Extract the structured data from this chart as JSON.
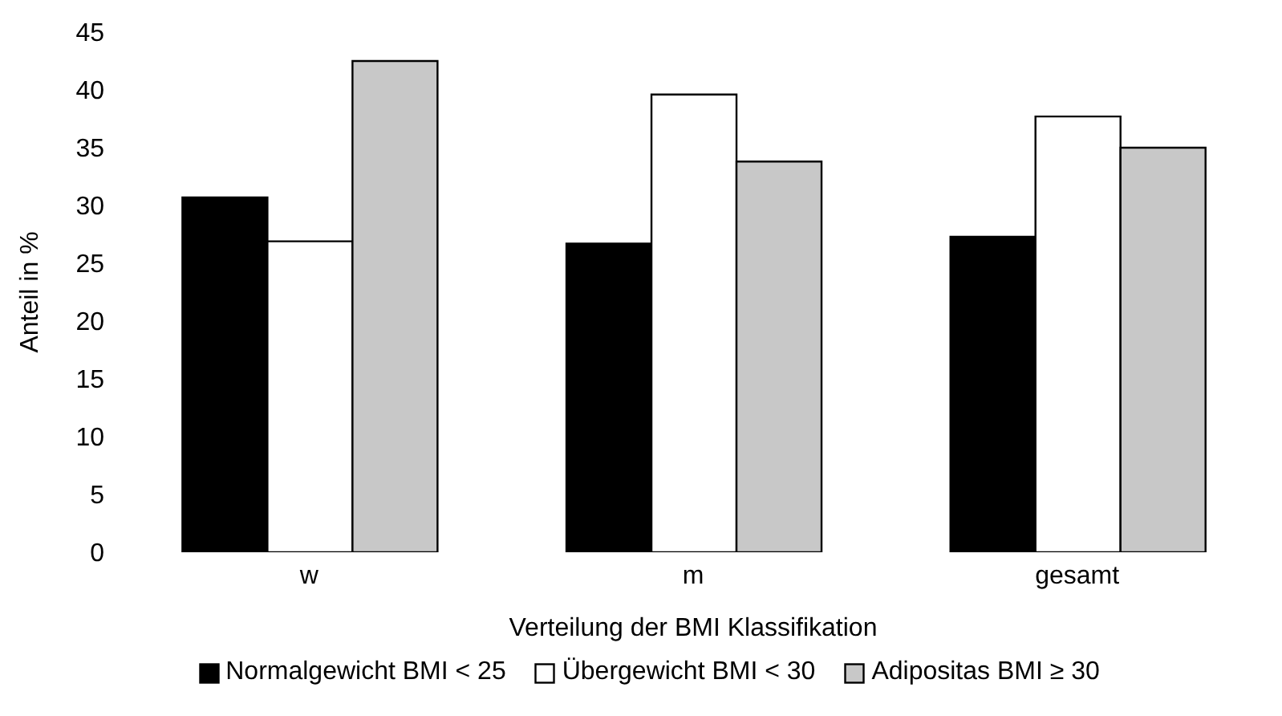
{
  "chart_data": {
    "type": "bar",
    "xlabel": "Verteilung der BMI Klassifikation",
    "ylabel": "Anteil in %",
    "categories": [
      "w",
      "m",
      "gesamt"
    ],
    "series": [
      {
        "name": "Normalgewicht BMI < 25",
        "color": "#000000",
        "values": [
          30.7,
          26.7,
          27.3
        ]
      },
      {
        "name": "Übergewicht BMI < 30",
        "color": "#ffffff",
        "values": [
          26.9,
          39.6,
          37.7
        ]
      },
      {
        "name": "Adipositas BMI ≥ 30",
        "color": "#c8c8c8",
        "values": [
          42.5,
          33.8,
          35.0
        ]
      }
    ],
    "ylim": [
      0,
      45
    ],
    "yticks": [
      0,
      5,
      10,
      15,
      20,
      25,
      30,
      35,
      40,
      45
    ],
    "grid": false,
    "legend": "bottom"
  }
}
